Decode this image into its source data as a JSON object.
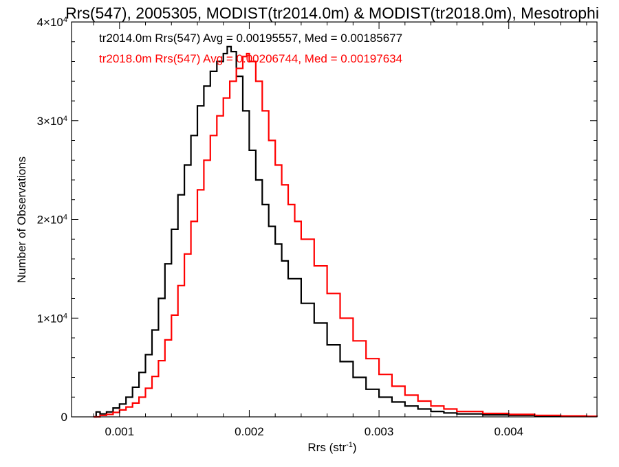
{
  "chart_data": {
    "type": "line",
    "title": "Rrs(547), 2005305, MODIST(tr2014.0m) & MODIST(tr2018.0m), Mesotrophi",
    "xlabel": {
      "base": "Rrs (str",
      "sup": "-1",
      "tail": ")"
    },
    "ylabel": "Number of Observations",
    "xlim": [
      0.00063,
      0.00468
    ],
    "ylim": [
      0,
      40000
    ],
    "x_ticks": [
      {
        "value": 0.001,
        "label": "0.001"
      },
      {
        "value": 0.002,
        "label": "0.002"
      },
      {
        "value": 0.003,
        "label": "0.003"
      },
      {
        "value": 0.004,
        "label": "0.004"
      }
    ],
    "y_ticks": [
      {
        "value": 0,
        "mant": "0",
        "exp": ""
      },
      {
        "value": 10000,
        "mant": "1×10",
        "exp": "4"
      },
      {
        "value": 20000,
        "mant": "2×10",
        "exp": "4"
      },
      {
        "value": 30000,
        "mant": "3×10",
        "exp": "4"
      },
      {
        "value": 40000,
        "mant": "4×10",
        "exp": "4"
      }
    ],
    "series": [
      {
        "name": "tr2014.0m",
        "color": "#000000",
        "stats_label": "tr2014.0m Rrs(547) Avg = 0.00195557, Med = 0.00185677",
        "points": [
          [
            0.0008,
            0
          ],
          [
            0.00082,
            500
          ],
          [
            0.00085,
            300
          ],
          [
            0.0009,
            500
          ],
          [
            0.00095,
            900
          ],
          [
            0.001,
            1300
          ],
          [
            0.00105,
            2000
          ],
          [
            0.0011,
            3000
          ],
          [
            0.00115,
            4500
          ],
          [
            0.0012,
            6300
          ],
          [
            0.00125,
            8800
          ],
          [
            0.0013,
            12000
          ],
          [
            0.00135,
            15500
          ],
          [
            0.0014,
            19000
          ],
          [
            0.00145,
            22500
          ],
          [
            0.0015,
            25500
          ],
          [
            0.00155,
            28500
          ],
          [
            0.0016,
            31500
          ],
          [
            0.00165,
            33500
          ],
          [
            0.0017,
            35000
          ],
          [
            0.00175,
            36000
          ],
          [
            0.0018,
            36800
          ],
          [
            0.00183,
            37500
          ],
          [
            0.00186,
            37000
          ],
          [
            0.0019,
            34500
          ],
          [
            0.00195,
            31000
          ],
          [
            0.002,
            27000
          ],
          [
            0.00205,
            24000
          ],
          [
            0.0021,
            21500
          ],
          [
            0.00215,
            19300
          ],
          [
            0.0022,
            17500
          ],
          [
            0.00225,
            15800
          ],
          [
            0.0023,
            14000
          ],
          [
            0.0024,
            11500
          ],
          [
            0.0025,
            9500
          ],
          [
            0.0026,
            7300
          ],
          [
            0.0027,
            5600
          ],
          [
            0.0028,
            4000
          ],
          [
            0.0029,
            2800
          ],
          [
            0.003,
            2000
          ],
          [
            0.0031,
            1500
          ],
          [
            0.0032,
            1100
          ],
          [
            0.0033,
            800
          ],
          [
            0.0034,
            550
          ],
          [
            0.0035,
            400
          ],
          [
            0.0036,
            300
          ],
          [
            0.0038,
            200
          ],
          [
            0.004,
            150
          ],
          [
            0.0042,
            100
          ],
          [
            0.0044,
            60
          ],
          [
            0.0046,
            40
          ],
          [
            0.00468,
            30
          ]
        ]
      },
      {
        "name": "tr2018.0m",
        "color": "#ff0000",
        "stats_label": "tr2018.0m Rrs(547) Avg = 0.00206744, Med = 0.00197634",
        "points": [
          [
            0.0008,
            0
          ],
          [
            0.00085,
            150
          ],
          [
            0.0009,
            250
          ],
          [
            0.00095,
            450
          ],
          [
            0.001,
            700
          ],
          [
            0.00105,
            1000
          ],
          [
            0.0011,
            1400
          ],
          [
            0.00115,
            2000
          ],
          [
            0.0012,
            2900
          ],
          [
            0.00125,
            4100
          ],
          [
            0.0013,
            5700
          ],
          [
            0.00135,
            7800
          ],
          [
            0.0014,
            10300
          ],
          [
            0.00145,
            13300
          ],
          [
            0.0015,
            16500
          ],
          [
            0.00155,
            19800
          ],
          [
            0.0016,
            23000
          ],
          [
            0.00165,
            26000
          ],
          [
            0.0017,
            28500
          ],
          [
            0.00175,
            30500
          ],
          [
            0.0018,
            32300
          ],
          [
            0.00185,
            34000
          ],
          [
            0.0019,
            35300
          ],
          [
            0.00195,
            36500
          ],
          [
            0.00198,
            36800
          ],
          [
            0.002,
            36000
          ],
          [
            0.00205,
            34000
          ],
          [
            0.0021,
            31000
          ],
          [
            0.00215,
            28000
          ],
          [
            0.0022,
            25500
          ],
          [
            0.00225,
            23500
          ],
          [
            0.0023,
            21500
          ],
          [
            0.00235,
            19800
          ],
          [
            0.0024,
            18000
          ],
          [
            0.0025,
            15300
          ],
          [
            0.0026,
            12500
          ],
          [
            0.0027,
            10000
          ],
          [
            0.0028,
            7700
          ],
          [
            0.0029,
            5900
          ],
          [
            0.003,
            4300
          ],
          [
            0.0031,
            3100
          ],
          [
            0.0032,
            2200
          ],
          [
            0.0033,
            1600
          ],
          [
            0.0034,
            1100
          ],
          [
            0.0035,
            800
          ],
          [
            0.0036,
            550
          ],
          [
            0.0038,
            350
          ],
          [
            0.004,
            250
          ],
          [
            0.0042,
            150
          ],
          [
            0.0044,
            100
          ],
          [
            0.0046,
            60
          ],
          [
            0.00468,
            50
          ]
        ]
      }
    ]
  }
}
